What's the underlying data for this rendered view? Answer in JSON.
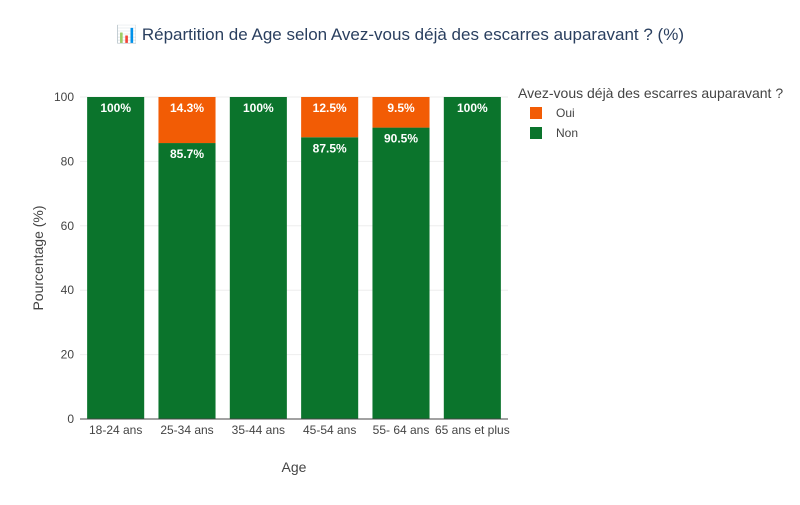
{
  "chart_data": {
    "type": "bar",
    "stacked": true,
    "title_icon": "📊",
    "title": "Répartition de Age selon Avez-vous déjà des escarres auparavant ? (%)",
    "xlabel": "Age",
    "ylabel": "Pourcentage (%)",
    "ylim": [
      0,
      100
    ],
    "yticks": [
      0,
      20,
      40,
      60,
      80,
      100
    ],
    "categories": [
      "18-24 ans",
      "25-34 ans",
      "35-44 ans",
      "45-54 ans",
      "55- 64 ans",
      "65 ans et plus"
    ],
    "series": [
      {
        "name": "Non",
        "color": "#0b742c",
        "values": [
          100,
          85.7,
          100,
          87.5,
          90.5,
          100
        ],
        "labels": [
          "100%",
          "85.7%",
          "100%",
          "87.5%",
          "90.5%",
          "100%"
        ]
      },
      {
        "name": "Oui",
        "color": "#f25c05",
        "values": [
          0,
          14.3,
          0,
          12.5,
          9.5,
          0
        ],
        "labels": [
          "",
          "14.3%",
          "",
          "12.5%",
          "9.5%",
          ""
        ]
      }
    ],
    "legend": {
      "title": "Avez-vous déjà des escarres auparavant ?",
      "placement": "top-right",
      "entries": [
        {
          "name": "Oui",
          "color": "#f25c05"
        },
        {
          "name": "Non",
          "color": "#0b742c"
        }
      ]
    },
    "grid": true
  }
}
